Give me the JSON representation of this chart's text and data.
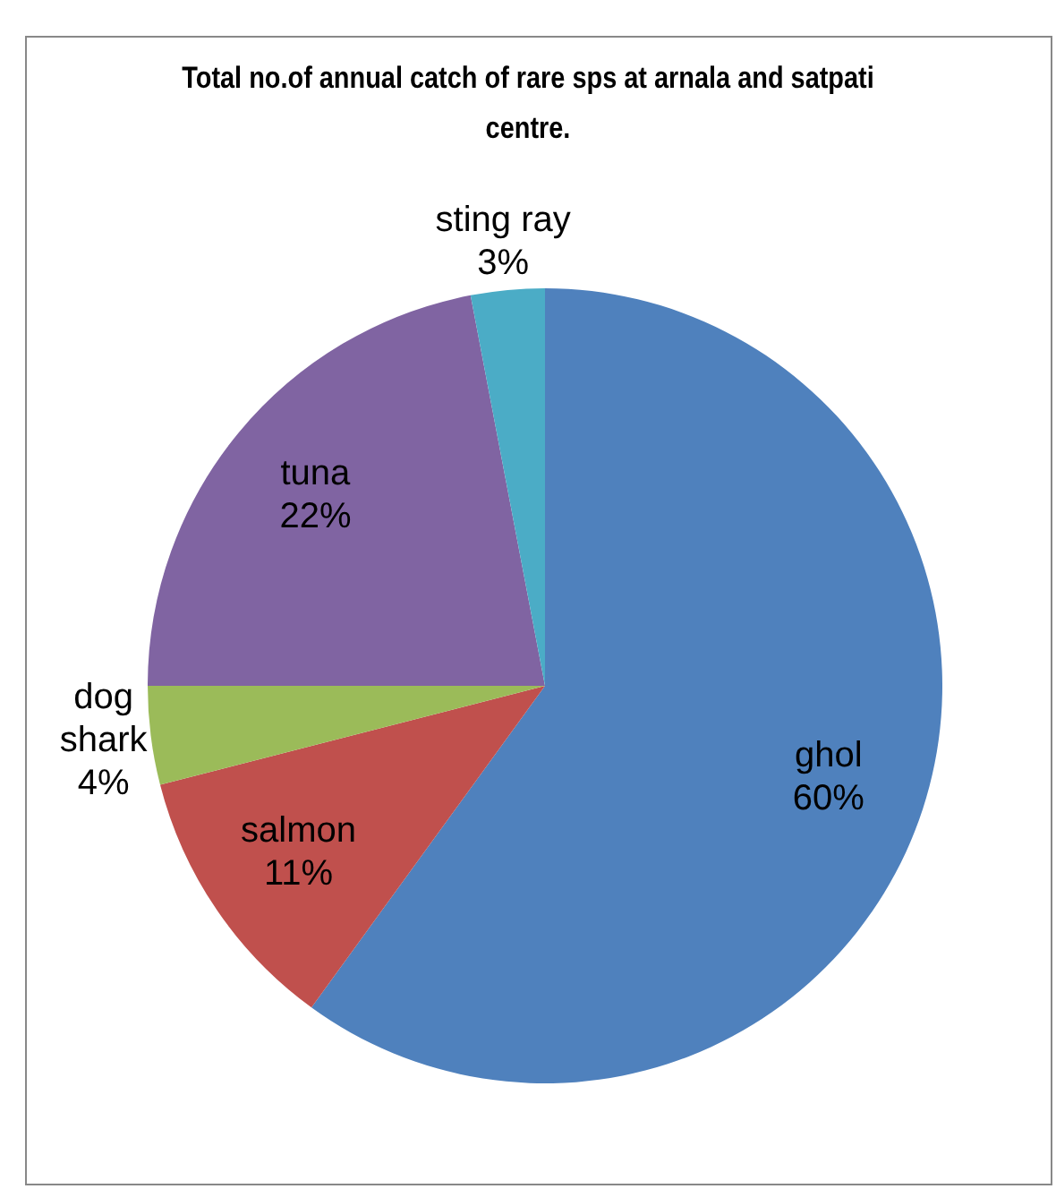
{
  "chart_data": {
    "type": "pie",
    "title": "Total no.of annual catch of rare  sps at arnala and satpati centre.",
    "categories": [
      "ghol",
      "salmon",
      "dog shark",
      "tuna",
      "sting ray"
    ],
    "values": [
      60,
      11,
      4,
      22,
      3
    ],
    "colors": [
      "#4f81bd",
      "#c0504d",
      "#9bbb59",
      "#8064a2",
      "#4bacc6"
    ],
    "value_labels": [
      "60%",
      "11%",
      "4%",
      "22%",
      "3%"
    ],
    "legend": false
  }
}
